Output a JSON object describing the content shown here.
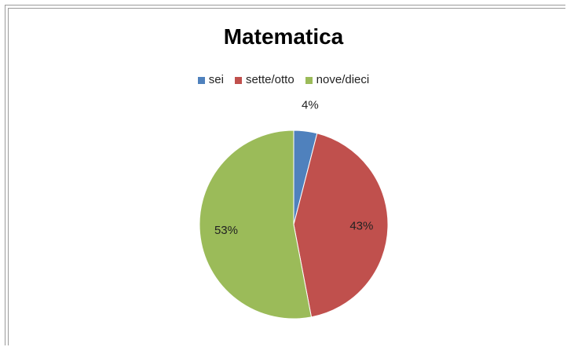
{
  "chart_data": {
    "type": "pie",
    "title": "Matematica",
    "legend_position": "top",
    "slices": [
      {
        "label": "sei",
        "value": 4,
        "display": "4%",
        "color": "#4f81bd"
      },
      {
        "label": "sette/otto",
        "value": 43,
        "display": "43%",
        "color": "#c0504d"
      },
      {
        "label": "nove/dieci",
        "value": 53,
        "display": "53%",
        "color": "#9bbb59"
      }
    ]
  }
}
